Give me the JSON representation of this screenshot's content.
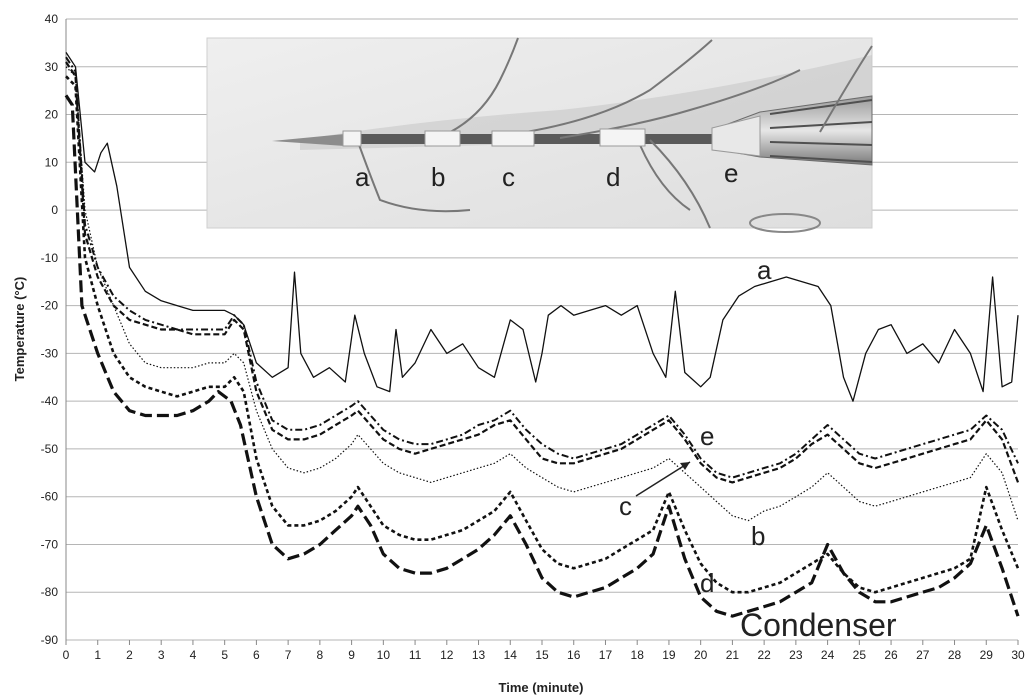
{
  "chart_data": {
    "type": "line",
    "title": "",
    "xlabel": "Time (minute)",
    "ylabel": "Temperature (°C)",
    "xlim": [
      0,
      30
    ],
    "ylim": [
      -90,
      40
    ],
    "x_ticks": [
      0,
      1,
      2,
      3,
      4,
      5,
      6,
      7,
      8,
      9,
      10,
      11,
      12,
      13,
      14,
      15,
      16,
      17,
      18,
      19,
      20,
      21,
      22,
      23,
      24,
      25,
      26,
      27,
      28,
      29,
      30
    ],
    "y_ticks": [
      40,
      30,
      20,
      10,
      0,
      -10,
      -20,
      -30,
      -40,
      -50,
      -60,
      -70,
      -80,
      -90
    ],
    "grid": "horizontal",
    "legend": "none",
    "series": [
      {
        "name": "a",
        "style": "solid",
        "x": [
          0,
          0.3,
          0.6,
          0.9,
          1.1,
          1.3,
          1.6,
          2,
          2.5,
          3,
          3.5,
          4,
          4.5,
          5,
          5.3,
          5.6,
          6,
          6.5,
          7,
          7.2,
          7.4,
          7.8,
          8.3,
          8.8,
          9.1,
          9.4,
          9.8,
          10.2,
          10.4,
          10.6,
          11,
          11.5,
          12,
          12.5,
          13,
          13.5,
          14,
          14.4,
          14.8,
          15,
          15.2,
          15.6,
          16,
          16.5,
          17,
          17.5,
          18,
          18.5,
          18.9,
          19.2,
          19.5,
          20,
          20.3,
          20.7,
          21.2,
          21.7,
          22.2,
          22.7,
          23.2,
          23.7,
          24.1,
          24.5,
          24.8,
          25.2,
          25.6,
          26,
          26.5,
          27,
          27.5,
          28,
          28.5,
          28.9,
          29.2,
          29.5,
          29.8,
          30
        ],
        "y": [
          33,
          30,
          10,
          8,
          12,
          14,
          5,
          -12,
          -17,
          -19,
          -20,
          -21,
          -21,
          -21,
          -22,
          -24,
          -32,
          -35,
          -33,
          -13,
          -30,
          -35,
          -33,
          -36,
          -22,
          -30,
          -37,
          -38,
          -25,
          -35,
          -32,
          -25,
          -30,
          -28,
          -33,
          -35,
          -23,
          -25,
          -36,
          -30,
          -22,
          -20,
          -22,
          -21,
          -20,
          -22,
          -20,
          -30,
          -35,
          -17,
          -34,
          -37,
          -35,
          -23,
          -18,
          -16,
          -15,
          -14,
          -15,
          -16,
          -20,
          -35,
          -40,
          -30,
          -25,
          -24,
          -30,
          -28,
          -32,
          -25,
          -30,
          -38,
          -14,
          -37,
          -36,
          -22
        ]
      },
      {
        "name": "b",
        "style": "dotted",
        "x": [
          0,
          0.3,
          0.6,
          1,
          1.5,
          2,
          2.5,
          3,
          3.5,
          4,
          4.5,
          5,
          5.3,
          5.6,
          6,
          6.5,
          7,
          7.5,
          8,
          8.5,
          9,
          9.2,
          9.6,
          10,
          10.5,
          11,
          11.5,
          12,
          12.5,
          13,
          13.5,
          14,
          14.5,
          15,
          15.5,
          16,
          16.5,
          17,
          17.5,
          18,
          18.5,
          19,
          19.5,
          20,
          20.5,
          21,
          21.5,
          22,
          22.5,
          23,
          23.5,
          24,
          24.5,
          25,
          25.5,
          26,
          26.5,
          27,
          27.5,
          28,
          28.5,
          29,
          29.5,
          30
        ],
        "y": [
          30,
          28,
          0,
          -12,
          -20,
          -28,
          -32,
          -33,
          -33,
          -33,
          -32,
          -32,
          -30,
          -32,
          -42,
          -50,
          -54,
          -55,
          -54,
          -52,
          -49,
          -47,
          -50,
          -53,
          -55,
          -56,
          -57,
          -56,
          -55,
          -54,
          -53,
          -51,
          -54,
          -56,
          -58,
          -59,
          -58,
          -57,
          -56,
          -55,
          -54,
          -52,
          -55,
          -58,
          -61,
          -64,
          -65,
          -63,
          -62,
          -60,
          -58,
          -55,
          -58,
          -61,
          -62,
          -61,
          -60,
          -59,
          -58,
          -57,
          -56,
          -51,
          -55,
          -65
        ]
      },
      {
        "name": "c",
        "style": "dash-dot",
        "x": [
          0,
          0.3,
          0.6,
          1,
          1.5,
          2,
          2.5,
          3,
          3.5,
          4,
          4.5,
          5,
          5.3,
          5.6,
          6,
          6.5,
          7,
          7.5,
          8,
          8.5,
          9,
          9.2,
          9.6,
          10,
          10.5,
          11,
          11.5,
          12,
          12.5,
          13,
          13.5,
          14,
          14.5,
          15,
          15.5,
          16,
          16.5,
          17,
          17.5,
          18,
          18.5,
          19,
          19.5,
          20,
          20.5,
          21,
          21.5,
          22,
          22.5,
          23,
          23.5,
          24,
          24.5,
          25,
          25.5,
          26,
          26.5,
          27,
          27.5,
          28,
          28.5,
          29,
          29.5,
          30
        ],
        "y": [
          32,
          29,
          -3,
          -12,
          -18,
          -21,
          -23,
          -24,
          -25,
          -25,
          -25,
          -25,
          -22,
          -24,
          -36,
          -44,
          -46,
          -46,
          -45,
          -43,
          -41,
          -40,
          -43,
          -46,
          -48,
          -49,
          -49,
          -48,
          -47,
          -45,
          -44,
          -42,
          -46,
          -49,
          -51,
          -52,
          -51,
          -50,
          -49,
          -47,
          -45,
          -43,
          -47,
          -52,
          -55,
          -56,
          -55,
          -54,
          -53,
          -51,
          -48,
          -45,
          -48,
          -51,
          -52,
          -51,
          -50,
          -49,
          -48,
          -47,
          -46,
          -43,
          -46,
          -53
        ]
      },
      {
        "name": "d",
        "style": "short-dash",
        "x": [
          0,
          0.3,
          0.6,
          1,
          1.5,
          2,
          2.5,
          3,
          3.5,
          4,
          4.5,
          5,
          5.3,
          5.6,
          6,
          6.5,
          7,
          7.5,
          8,
          8.5,
          9,
          9.2,
          9.6,
          10,
          10.5,
          11,
          11.5,
          12,
          12.5,
          13,
          13.5,
          14,
          14.5,
          15,
          15.5,
          16,
          16.5,
          17,
          17.5,
          18,
          18.5,
          19,
          19.5,
          20,
          20.5,
          21,
          21.5,
          22,
          22.5,
          23,
          23.5,
          24,
          24.5,
          25,
          25.5,
          26,
          26.5,
          27,
          27.5,
          28,
          28.5,
          29,
          29.5,
          30
        ],
        "y": [
          28,
          26,
          -10,
          -20,
          -30,
          -35,
          -37,
          -38,
          -39,
          -38,
          -37,
          -37,
          -35,
          -38,
          -52,
          -62,
          -66,
          -66,
          -65,
          -63,
          -60,
          -58,
          -62,
          -66,
          -68,
          -69,
          -69,
          -68,
          -67,
          -65,
          -63,
          -59,
          -65,
          -71,
          -74,
          -75,
          -74,
          -73,
          -71,
          -69,
          -67,
          -59,
          -67,
          -74,
          -78,
          -80,
          -80,
          -79,
          -78,
          -76,
          -74,
          -72,
          -76,
          -79,
          -80,
          -79,
          -78,
          -77,
          -76,
          -75,
          -73,
          -58,
          -67,
          -75
        ]
      },
      {
        "name": "e",
        "style": "dash",
        "x": [
          0,
          0.3,
          0.6,
          1,
          1.5,
          2,
          2.5,
          3,
          3.5,
          4,
          4.5,
          5,
          5.3,
          5.6,
          6,
          6.5,
          7,
          7.5,
          8,
          8.5,
          9,
          9.2,
          9.6,
          10,
          10.5,
          11,
          11.5,
          12,
          12.5,
          13,
          13.5,
          14,
          14.5,
          15,
          15.5,
          16,
          16.5,
          17,
          17.5,
          18,
          18.5,
          19,
          19.5,
          20,
          20.5,
          21,
          21.5,
          22,
          22.5,
          23,
          23.5,
          24,
          24.5,
          25,
          25.5,
          26,
          26.5,
          27,
          27.5,
          28,
          28.5,
          29,
          29.5,
          30
        ],
        "y": [
          31,
          28,
          -5,
          -14,
          -20,
          -23,
          -24,
          -25,
          -25,
          -26,
          -26,
          -26,
          -23,
          -25,
          -38,
          -46,
          -48,
          -48,
          -47,
          -45,
          -43,
          -42,
          -45,
          -48,
          -50,
          -51,
          -50,
          -49,
          -48,
          -47,
          -45,
          -44,
          -48,
          -52,
          -53,
          -53,
          -52,
          -51,
          -50,
          -48,
          -46,
          -44,
          -48,
          -53,
          -56,
          -57,
          -56,
          -55,
          -54,
          -52,
          -49,
          -47,
          -50,
          -53,
          -54,
          -53,
          -52,
          -51,
          -50,
          -49,
          -48,
          -44,
          -48,
          -57
        ]
      },
      {
        "name": "Condenser",
        "style": "long-dash-thick",
        "x": [
          0,
          0.2,
          0.5,
          1,
          1.5,
          2,
          2.5,
          3,
          3.5,
          4,
          4.5,
          4.8,
          5.2,
          5.5,
          6,
          6.5,
          7,
          7.5,
          8,
          8.5,
          9,
          9.2,
          9.6,
          10,
          10.5,
          11,
          11.5,
          12,
          12.5,
          13,
          13.5,
          14,
          14.5,
          15,
          15.5,
          16,
          16.5,
          17,
          17.5,
          18,
          18.5,
          19,
          19.5,
          20,
          20.5,
          21,
          21.5,
          22,
          22.5,
          23,
          23.5,
          24,
          24.5,
          25,
          25.5,
          26,
          26.5,
          27,
          27.5,
          28,
          28.5,
          29,
          29.5,
          30
        ],
        "y": [
          24,
          22,
          -20,
          -30,
          -38,
          -42,
          -43,
          -43,
          -43,
          -42,
          -40,
          -38,
          -40,
          -45,
          -60,
          -70,
          -73,
          -72,
          -70,
          -67,
          -64,
          -62,
          -66,
          -72,
          -75,
          -76,
          -76,
          -75,
          -73,
          -71,
          -68,
          -64,
          -70,
          -77,
          -80,
          -81,
          -80,
          -79,
          -77,
          -75,
          -72,
          -62,
          -73,
          -81,
          -84,
          -85,
          -84,
          -83,
          -82,
          -80,
          -78,
          -70,
          -76,
          -80,
          -82,
          -82,
          -81,
          -80,
          -79,
          -77,
          -74,
          -66,
          -75,
          -85
        ]
      }
    ],
    "annotations": [
      "a",
      "e",
      "c",
      "b",
      "d",
      "Condenser"
    ],
    "inset_photo_labels": [
      "a",
      "b",
      "c",
      "d",
      "e"
    ]
  }
}
